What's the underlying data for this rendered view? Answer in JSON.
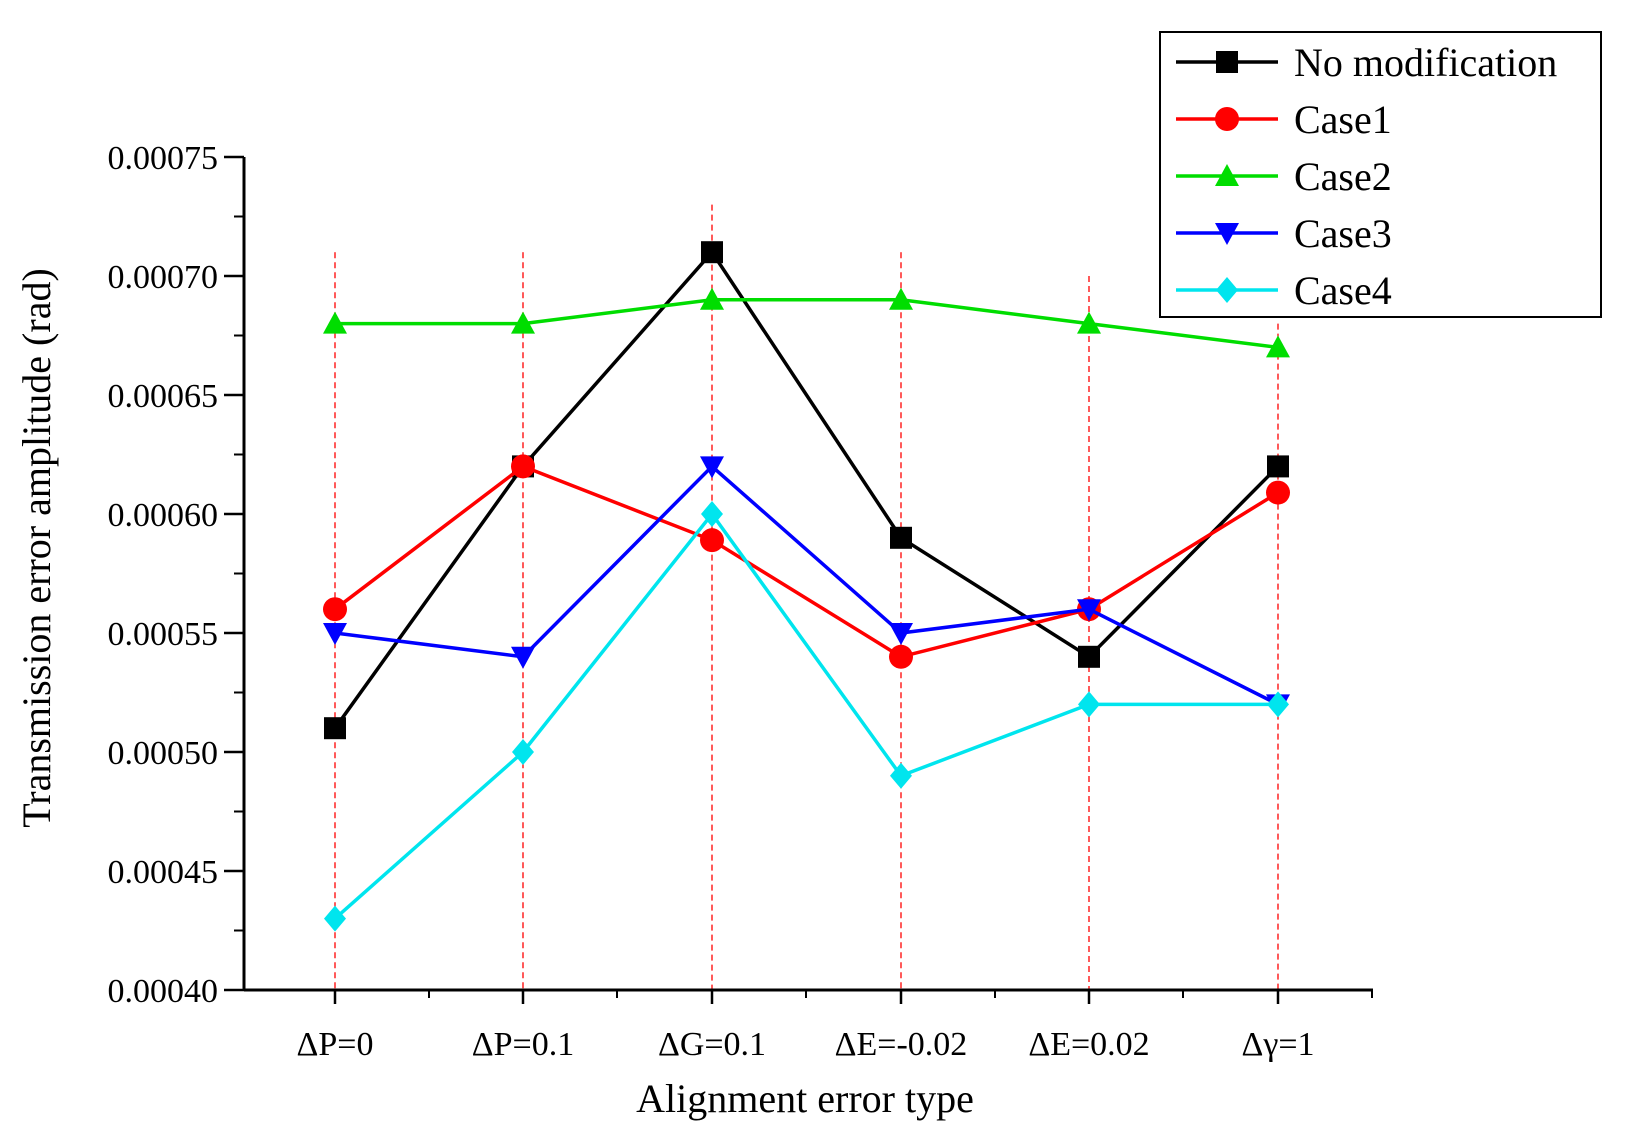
{
  "chart_data": {
    "type": "line",
    "title": "",
    "xlabel": "Alignment error type",
    "ylabel": "Transmission error amplitude (rad)",
    "categories": [
      "ΔP=0",
      "ΔP=0.1",
      "ΔG=0.1",
      "ΔE=-0.02",
      "ΔE=0.02",
      "Δγ=1"
    ],
    "ylim": [
      0.0004,
      0.00075
    ],
    "yticks": [
      "0.00040",
      "0.00045",
      "0.00050",
      "0.00055",
      "0.00060",
      "0.00065",
      "0.00070",
      "0.00075"
    ],
    "ytick_values": [
      0.0004,
      0.00045,
      0.0005,
      0.00055,
      0.0006,
      0.00065,
      0.0007,
      0.00075
    ],
    "reference_lines": {
      "style": "red dashed vertical line at each category",
      "top_values": [
        0.00071,
        0.00071,
        0.00073,
        0.00071,
        0.0007,
        0.00068
      ]
    },
    "legend_position": "top-right",
    "series": [
      {
        "name": "No modification",
        "color": "#000000",
        "marker": "square",
        "values": [
          0.00051,
          0.00062,
          0.00071,
          0.00059,
          0.00054,
          0.00062
        ]
      },
      {
        "name": "Case1",
        "color": "#ff0000",
        "marker": "circle",
        "values": [
          0.00056,
          0.00062,
          0.000589,
          0.00054,
          0.00056,
          0.000609
        ]
      },
      {
        "name": "Case2",
        "color": "#00dd00",
        "marker": "triangle-up",
        "values": [
          0.00068,
          0.00068,
          0.00069,
          0.00069,
          0.00068,
          0.00067
        ]
      },
      {
        "name": "Case3",
        "color": "#0000ff",
        "marker": "triangle-down",
        "values": [
          0.00055,
          0.00054,
          0.00062,
          0.00055,
          0.00056,
          0.00052
        ]
      },
      {
        "name": "Case4",
        "color": "#00e5ee",
        "marker": "diamond",
        "values": [
          0.00043,
          0.0005,
          0.0006,
          0.00049,
          0.00052,
          0.00052
        ]
      }
    ]
  }
}
